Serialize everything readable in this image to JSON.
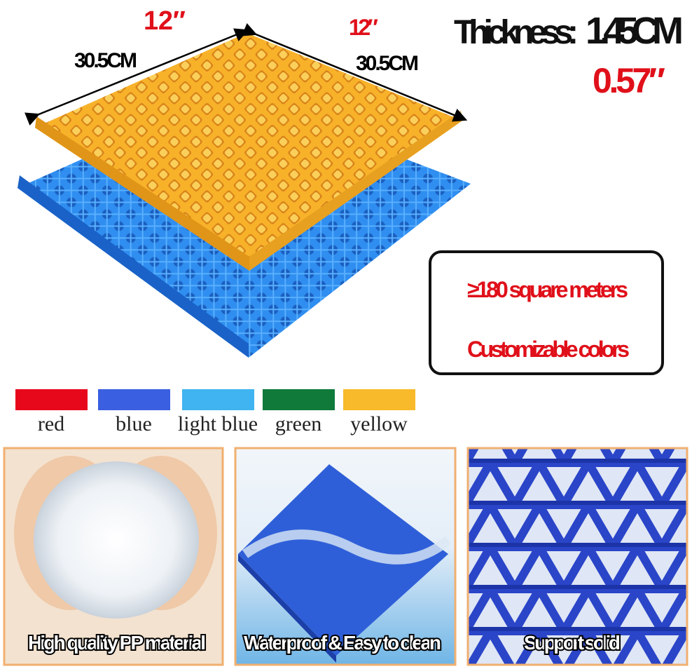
{
  "dimensions": {
    "top_left_inch": "12″",
    "top_right_inch": "12″",
    "left_cm": "30.5CM",
    "right_cm": "30.5CM"
  },
  "thickness": {
    "label": "Thickness:",
    "cm": "1.45CM",
    "inch": "0.57″"
  },
  "callout": {
    "lines": [
      "≥180 square meters",
      "Customizable colors"
    ]
  },
  "colors": [
    {
      "name": "red",
      "color": "#e8081c"
    },
    {
      "name": "blue",
      "color": "#3a5fe0"
    },
    {
      "name": "light blue",
      "color": "#3fb4f0"
    },
    {
      "name": "green",
      "color": "#0f7a3a"
    },
    {
      "name": "yellow",
      "color": "#f8b92a"
    }
  ],
  "features": [
    {
      "caption": "High quality PP material"
    },
    {
      "caption": "Waterproof & Easy to clean"
    },
    {
      "caption": "Support solid"
    }
  ]
}
